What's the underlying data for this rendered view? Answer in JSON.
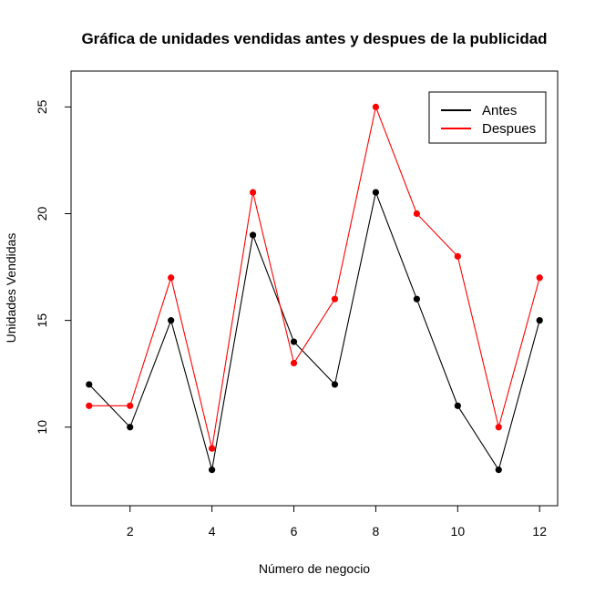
{
  "chart_data": {
    "type": "line",
    "title": "Gráfica de unidades vendidas antes y despues de la publicidad",
    "xlabel": "Número de negocio",
    "ylabel": "Unidades Vendidas",
    "x": [
      1,
      2,
      3,
      4,
      5,
      6,
      7,
      8,
      9,
      10,
      11,
      12
    ],
    "xlim": [
      0.56,
      12.44
    ],
    "ylim": [
      6.32,
      26.68
    ],
    "xticks": [
      2,
      4,
      6,
      8,
      10,
      12
    ],
    "yticks": [
      10,
      15,
      20,
      25
    ],
    "grid": false,
    "legend_position": "top-right",
    "series": [
      {
        "name": "Antes",
        "color": "#000000",
        "values": [
          12,
          10,
          15,
          8,
          19,
          14,
          12,
          21,
          16,
          11,
          8,
          15
        ]
      },
      {
        "name": "Despues",
        "color": "#ff0000",
        "values": [
          11,
          11,
          17,
          9,
          21,
          13,
          16,
          25,
          20,
          18,
          10,
          17
        ]
      }
    ]
  }
}
